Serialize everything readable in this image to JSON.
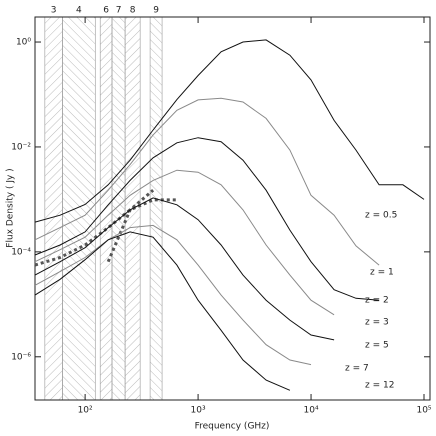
{
  "chart_data": {
    "type": "line",
    "x_label": "Frequency (GHz)",
    "y_label": "Flux Density ( Jy )",
    "log_x": true,
    "log_y": true,
    "xlim": [
      36,
      113000
    ],
    "ylim": [
      1.5e-07,
      3
    ],
    "xticks": [
      {
        "value": 100,
        "label": "10²"
      },
      {
        "value": 1000,
        "label": "10³"
      },
      {
        "value": 10000,
        "label": "10⁴"
      },
      {
        "value": 100000,
        "label": "10⁵"
      }
    ],
    "yticks": [
      {
        "value": 1,
        "label": "10⁰"
      },
      {
        "value": 0.01,
        "label": "10⁻²"
      },
      {
        "value": 0.0001,
        "label": "10⁻⁴"
      },
      {
        "value": 1e-06,
        "label": "10⁻⁶"
      }
    ],
    "bands": [
      {
        "label": "3",
        "range": [
          44,
          63
        ]
      },
      {
        "label": "4",
        "range": [
          63,
          123
        ]
      },
      {
        "label": "6",
        "range": [
          136,
          173
        ]
      },
      {
        "label": "7",
        "range": [
          173,
          226
        ]
      },
      {
        "label": "8",
        "range": [
          226,
          307
        ]
      },
      {
        "label": "9",
        "range": [
          376,
          480
        ]
      }
    ],
    "x": [
      36,
      60,
      100,
      160,
      250,
      400,
      650,
      1000,
      1600,
      2500,
      4000,
      6500,
      10000,
      16000,
      25000,
      40000,
      65000,
      100000
    ],
    "series": [
      {
        "name": "z = 0.5",
        "color": "#111111",
        "values": [
          0.00037,
          0.0005,
          0.0008,
          0.0019,
          0.0056,
          0.021,
          0.08,
          0.23,
          0.65,
          1.0,
          1.1,
          0.56,
          0.19,
          0.032,
          0.0087,
          0.0019,
          0.0019,
          0.001
        ]
      },
      {
        "name": "z = 1",
        "color": "#8a8a8a",
        "values": [
          0.00017,
          0.00029,
          0.0005,
          0.0015,
          0.0046,
          0.017,
          0.05,
          0.079,
          0.085,
          0.072,
          0.035,
          0.0087,
          0.0012,
          0.0005,
          0.00013,
          5.6e-05,
          null,
          null
        ]
      },
      {
        "name": "z = 2",
        "color": "#111111",
        "values": [
          8.7e-05,
          0.000135,
          0.00024,
          0.00079,
          0.0023,
          0.0062,
          0.012,
          0.015,
          0.0126,
          0.0056,
          0.0015,
          0.00026,
          6.5e-05,
          1.9e-05,
          1.3e-05,
          1.2e-05,
          null,
          null
        ]
      },
      {
        "name": "z = 3",
        "color": "#8a8a8a",
        "values": [
          6.5e-05,
          0.00011,
          0.00019,
          0.0005,
          0.0012,
          0.0023,
          0.0036,
          0.0033,
          0.0019,
          0.00063,
          0.000135,
          3.6e-05,
          1.2e-05,
          6.3e-06,
          null,
          null,
          null,
          null
        ]
      },
      {
        "name": "z = 5",
        "color": "#111111",
        "values": [
          3.6e-05,
          6.5e-05,
          0.00012,
          0.00029,
          0.00063,
          0.00107,
          0.00079,
          0.00041,
          0.000135,
          3.6e-05,
          1.2e-05,
          5e-06,
          2.6e-06,
          2.1e-06,
          null,
          null,
          null,
          null
        ]
      },
      {
        "name": "z = 7",
        "color": "#8a8a8a",
        "values": [
          2.3e-05,
          4.2e-05,
          7.8e-05,
          0.00017,
          0.00029,
          0.00032,
          0.00017,
          5.6e-05,
          1.5e-05,
          5e-06,
          1.7e-06,
          8.7e-07,
          7.1e-07,
          null,
          null,
          null,
          null,
          null
        ]
      },
      {
        "name": "z = 12",
        "color": "#111111",
        "values": [
          1.5e-05,
          3e-05,
          7.1e-05,
          0.00017,
          0.00024,
          0.00019,
          5.6e-05,
          1.2e-05,
          3.2e-06,
          8.7e-07,
          3.6e-07,
          2.3e-07,
          null,
          null,
          null,
          null,
          null,
          null
        ]
      }
    ],
    "dotted_series": [
      {
        "color": "#555555",
        "values": [
          5.6e-05,
          7.8e-05,
          0.000135,
          0.00029,
          0.00063,
          0.00098,
          0.00098,
          null,
          null,
          null,
          null,
          null,
          null,
          null,
          null,
          null,
          null,
          null
        ]
      },
      {
        "color": "#555555",
        "values": [
          null,
          null,
          null,
          6.5e-05,
          0.00063,
          0.0015,
          null,
          null,
          null,
          null,
          null,
          null,
          null,
          null,
          null,
          null,
          null,
          null
        ]
      }
    ]
  }
}
